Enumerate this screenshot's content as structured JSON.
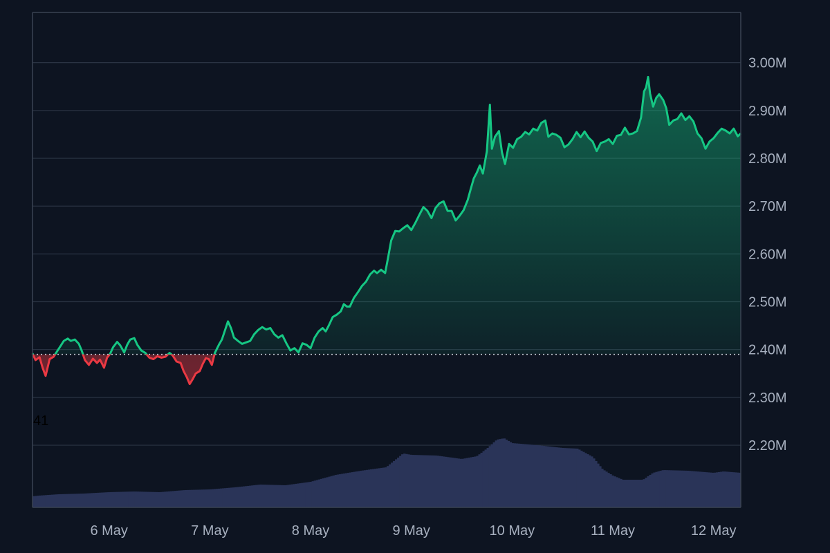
{
  "colors": {
    "background": "#0d1421",
    "grid": "#2b3444",
    "frame": "#3a4352",
    "tick_text": "#a7b0bf",
    "up_line": "#16c784",
    "down_line": "#ea3943",
    "up_fill": "#16c784",
    "down_fill": "#ea3943",
    "volume": "#2a3458",
    "baseline": "#c8ced8",
    "annotation_text": "#000000"
  },
  "chart_data": {
    "type": "area",
    "grid": true,
    "legend": "none",
    "x_tick_labels": [
      "6 May",
      "7 May",
      "8 May",
      "9 May",
      "10 May",
      "11 May",
      "12 May"
    ],
    "x_tick_days": [
      6,
      7,
      8,
      9,
      10,
      11,
      12
    ],
    "xlim_days": [
      5.24,
      12.27
    ],
    "y_tick_labels": [
      "3.00M",
      "2.90M",
      "2.80M",
      "2.70M",
      "2.60M",
      "2.50M",
      "2.40M",
      "2.30M",
      "2.20M"
    ],
    "y_tick_values": [
      3.0,
      2.9,
      2.8,
      2.7,
      2.6,
      2.5,
      2.4,
      2.3,
      2.2
    ],
    "ylim_millions": [
      2.07,
      3.105
    ],
    "baseline_millions": 2.39,
    "annotation": "41",
    "price_series": {
      "unit": "millions",
      "points": [
        [
          5.24,
          2.392
        ],
        [
          5.27,
          2.378
        ],
        [
          5.31,
          2.384
        ],
        [
          5.34,
          2.362
        ],
        [
          5.37,
          2.345
        ],
        [
          5.41,
          2.38
        ],
        [
          5.45,
          2.385
        ],
        [
          5.48,
          2.395
        ],
        [
          5.52,
          2.408
        ],
        [
          5.55,
          2.418
        ],
        [
          5.59,
          2.423
        ],
        [
          5.62,
          2.418
        ],
        [
          5.66,
          2.421
        ],
        [
          5.7,
          2.412
        ],
        [
          5.73,
          2.397
        ],
        [
          5.76,
          2.378
        ],
        [
          5.8,
          2.368
        ],
        [
          5.84,
          2.381
        ],
        [
          5.88,
          2.372
        ],
        [
          5.91,
          2.379
        ],
        [
          5.95,
          2.362
        ],
        [
          5.98,
          2.383
        ],
        [
          6.01,
          2.391
        ],
        [
          6.04,
          2.405
        ],
        [
          6.08,
          2.416
        ],
        [
          6.11,
          2.409
        ],
        [
          6.15,
          2.394
        ],
        [
          6.18,
          2.41
        ],
        [
          6.21,
          2.421
        ],
        [
          6.25,
          2.424
        ],
        [
          6.28,
          2.41
        ],
        [
          6.32,
          2.398
        ],
        [
          6.36,
          2.393
        ],
        [
          6.4,
          2.383
        ],
        [
          6.44,
          2.38
        ],
        [
          6.48,
          2.386
        ],
        [
          6.52,
          2.383
        ],
        [
          6.56,
          2.385
        ],
        [
          6.6,
          2.393
        ],
        [
          6.63,
          2.388
        ],
        [
          6.67,
          2.375
        ],
        [
          6.71,
          2.372
        ],
        [
          6.74,
          2.355
        ],
        [
          6.77,
          2.343
        ],
        [
          6.8,
          2.328
        ],
        [
          6.83,
          2.338
        ],
        [
          6.86,
          2.35
        ],
        [
          6.9,
          2.355
        ],
        [
          6.93,
          2.37
        ],
        [
          6.96,
          2.382
        ],
        [
          6.99,
          2.38
        ],
        [
          7.02,
          2.368
        ],
        [
          7.05,
          2.393
        ],
        [
          7.09,
          2.41
        ],
        [
          7.12,
          2.421
        ],
        [
          7.15,
          2.44
        ],
        [
          7.18,
          2.459
        ],
        [
          7.21,
          2.445
        ],
        [
          7.24,
          2.425
        ],
        [
          7.28,
          2.418
        ],
        [
          7.32,
          2.412
        ],
        [
          7.36,
          2.415
        ],
        [
          7.4,
          2.418
        ],
        [
          7.44,
          2.432
        ],
        [
          7.48,
          2.441
        ],
        [
          7.52,
          2.447
        ],
        [
          7.56,
          2.442
        ],
        [
          7.6,
          2.445
        ],
        [
          7.64,
          2.432
        ],
        [
          7.68,
          2.425
        ],
        [
          7.72,
          2.43
        ],
        [
          7.76,
          2.413
        ],
        [
          7.8,
          2.398
        ],
        [
          7.84,
          2.403
        ],
        [
          7.88,
          2.394
        ],
        [
          7.92,
          2.413
        ],
        [
          7.96,
          2.41
        ],
        [
          8.0,
          2.403
        ],
        [
          8.04,
          2.425
        ],
        [
          8.08,
          2.438
        ],
        [
          8.12,
          2.445
        ],
        [
          8.15,
          2.438
        ],
        [
          8.18,
          2.45
        ],
        [
          8.22,
          2.468
        ],
        [
          8.26,
          2.473
        ],
        [
          8.3,
          2.48
        ],
        [
          8.33,
          2.495
        ],
        [
          8.36,
          2.49
        ],
        [
          8.39,
          2.49
        ],
        [
          8.43,
          2.508
        ],
        [
          8.47,
          2.52
        ],
        [
          8.51,
          2.533
        ],
        [
          8.55,
          2.542
        ],
        [
          8.59,
          2.557
        ],
        [
          8.63,
          2.565
        ],
        [
          8.66,
          2.56
        ],
        [
          8.7,
          2.567
        ],
        [
          8.74,
          2.56
        ],
        [
          8.77,
          2.593
        ],
        [
          8.8,
          2.628
        ],
        [
          8.84,
          2.648
        ],
        [
          8.88,
          2.647
        ],
        [
          8.92,
          2.654
        ],
        [
          8.96,
          2.66
        ],
        [
          9.0,
          2.65
        ],
        [
          9.04,
          2.665
        ],
        [
          9.08,
          2.682
        ],
        [
          9.12,
          2.698
        ],
        [
          9.16,
          2.69
        ],
        [
          9.2,
          2.675
        ],
        [
          9.24,
          2.696
        ],
        [
          9.28,
          2.706
        ],
        [
          9.32,
          2.71
        ],
        [
          9.36,
          2.69
        ],
        [
          9.4,
          2.69
        ],
        [
          9.44,
          2.67
        ],
        [
          9.48,
          2.68
        ],
        [
          9.52,
          2.692
        ],
        [
          9.56,
          2.713
        ],
        [
          9.59,
          2.736
        ],
        [
          9.62,
          2.758
        ],
        [
          9.65,
          2.77
        ],
        [
          9.68,
          2.785
        ],
        [
          9.71,
          2.768
        ],
        [
          9.75,
          2.815
        ],
        [
          9.78,
          2.912
        ],
        [
          9.8,
          2.82
        ],
        [
          9.83,
          2.845
        ],
        [
          9.87,
          2.857
        ],
        [
          9.9,
          2.812
        ],
        [
          9.93,
          2.788
        ],
        [
          9.97,
          2.83
        ],
        [
          10.01,
          2.822
        ],
        [
          10.05,
          2.84
        ],
        [
          10.09,
          2.845
        ],
        [
          10.13,
          2.855
        ],
        [
          10.17,
          2.85
        ],
        [
          10.21,
          2.862
        ],
        [
          10.25,
          2.858
        ],
        [
          10.29,
          2.874
        ],
        [
          10.33,
          2.879
        ],
        [
          10.36,
          2.845
        ],
        [
          10.4,
          2.852
        ],
        [
          10.44,
          2.849
        ],
        [
          10.48,
          2.843
        ],
        [
          10.52,
          2.823
        ],
        [
          10.56,
          2.829
        ],
        [
          10.6,
          2.84
        ],
        [
          10.64,
          2.855
        ],
        [
          10.68,
          2.844
        ],
        [
          10.72,
          2.856
        ],
        [
          10.76,
          2.843
        ],
        [
          10.8,
          2.835
        ],
        [
          10.84,
          2.815
        ],
        [
          10.88,
          2.832
        ],
        [
          10.92,
          2.835
        ],
        [
          10.96,
          2.84
        ],
        [
          11.0,
          2.83
        ],
        [
          11.04,
          2.847
        ],
        [
          11.08,
          2.849
        ],
        [
          11.12,
          2.864
        ],
        [
          11.16,
          2.85
        ],
        [
          11.2,
          2.852
        ],
        [
          11.24,
          2.857
        ],
        [
          11.28,
          2.885
        ],
        [
          11.31,
          2.94
        ],
        [
          11.33,
          2.948
        ],
        [
          11.35,
          2.97
        ],
        [
          11.37,
          2.935
        ],
        [
          11.4,
          2.908
        ],
        [
          11.43,
          2.926
        ],
        [
          11.46,
          2.934
        ],
        [
          11.5,
          2.922
        ],
        [
          11.53,
          2.905
        ],
        [
          11.56,
          2.87
        ],
        [
          11.6,
          2.879
        ],
        [
          11.64,
          2.882
        ],
        [
          11.68,
          2.894
        ],
        [
          11.72,
          2.88
        ],
        [
          11.76,
          2.888
        ],
        [
          11.8,
          2.877
        ],
        [
          11.84,
          2.852
        ],
        [
          11.88,
          2.842
        ],
        [
          11.92,
          2.82
        ],
        [
          11.96,
          2.835
        ],
        [
          12.0,
          2.842
        ],
        [
          12.04,
          2.853
        ],
        [
          12.08,
          2.862
        ],
        [
          12.12,
          2.858
        ],
        [
          12.16,
          2.852
        ],
        [
          12.2,
          2.862
        ],
        [
          12.24,
          2.846
        ],
        [
          12.27,
          2.852
        ]
      ]
    },
    "volume_series": {
      "points": [
        [
          5.24,
          0.16
        ],
        [
          5.3,
          0.17
        ],
        [
          5.5,
          0.19
        ],
        [
          5.75,
          0.2
        ],
        [
          6.0,
          0.22
        ],
        [
          6.25,
          0.23
        ],
        [
          6.5,
          0.22
        ],
        [
          6.75,
          0.25
        ],
        [
          7.0,
          0.26
        ],
        [
          7.25,
          0.29
        ],
        [
          7.5,
          0.33
        ],
        [
          7.75,
          0.32
        ],
        [
          8.0,
          0.37
        ],
        [
          8.25,
          0.47
        ],
        [
          8.5,
          0.53
        ],
        [
          8.75,
          0.58
        ],
        [
          8.92,
          0.78
        ],
        [
          9.0,
          0.76
        ],
        [
          9.25,
          0.75
        ],
        [
          9.5,
          0.7
        ],
        [
          9.65,
          0.74
        ],
        [
          9.75,
          0.85
        ],
        [
          9.85,
          0.98
        ],
        [
          9.92,
          1.0
        ],
        [
          10.0,
          0.93
        ],
        [
          10.25,
          0.9
        ],
        [
          10.5,
          0.86
        ],
        [
          10.65,
          0.85
        ],
        [
          10.8,
          0.73
        ],
        [
          10.9,
          0.55
        ],
        [
          11.0,
          0.46
        ],
        [
          11.1,
          0.4
        ],
        [
          11.3,
          0.4
        ],
        [
          11.4,
          0.5
        ],
        [
          11.5,
          0.54
        ],
        [
          11.75,
          0.53
        ],
        [
          12.0,
          0.5
        ],
        [
          12.1,
          0.52
        ],
        [
          12.27,
          0.5
        ]
      ]
    }
  }
}
